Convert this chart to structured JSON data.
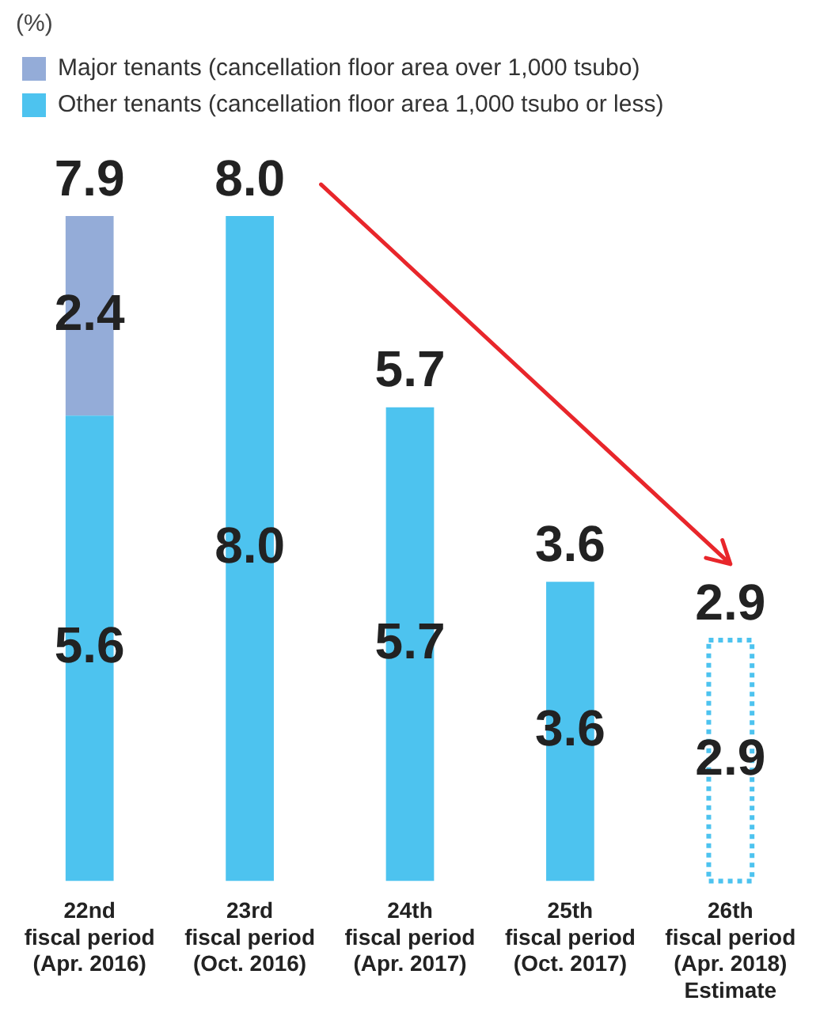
{
  "chart_data": {
    "type": "bar",
    "stacked": true,
    "annotations": [
      "(%)"
    ],
    "legend": "top left",
    "grid": false,
    "categories": [
      "22nd\nfiscal period\n(Apr. 2016)",
      "23rd\nfiscal period\n(Oct. 2016)",
      "24th\nfiscal period\n(Apr. 2017)",
      "25th\nfiscal period\n(Oct. 2017)",
      "26th\nfiscal period\n(Apr. 2018)\nEstimate"
    ],
    "series": [
      {
        "name": "Other tenants (cancellation floor area 1,000 tsubo or less)",
        "color": "#4dc3ef",
        "values": [
          5.6,
          8.0,
          5.7,
          3.6,
          null
        ],
        "value_labels": [
          "5.6",
          "8.0",
          "5.7",
          "3.6",
          null
        ]
      },
      {
        "color": "#4dc3ef",
        "line_style": "dotted",
        "values": [
          null,
          null,
          null,
          null,
          2.9
        ],
        "value_labels": [
          null,
          null,
          null,
          null,
          "2.9"
        ]
      },
      {
        "name": "Major tenants (cancellation floor area over 1,000 tsubo)",
        "color": "#94acd8",
        "values": [
          2.4,
          null,
          null,
          null,
          null
        ],
        "value_labels": [
          "2.4",
          null,
          null,
          null,
          null
        ]
      }
    ],
    "totals": [
      "7.9",
      "8.0",
      "5.7",
      "3.6",
      "2.9"
    ]
  }
}
